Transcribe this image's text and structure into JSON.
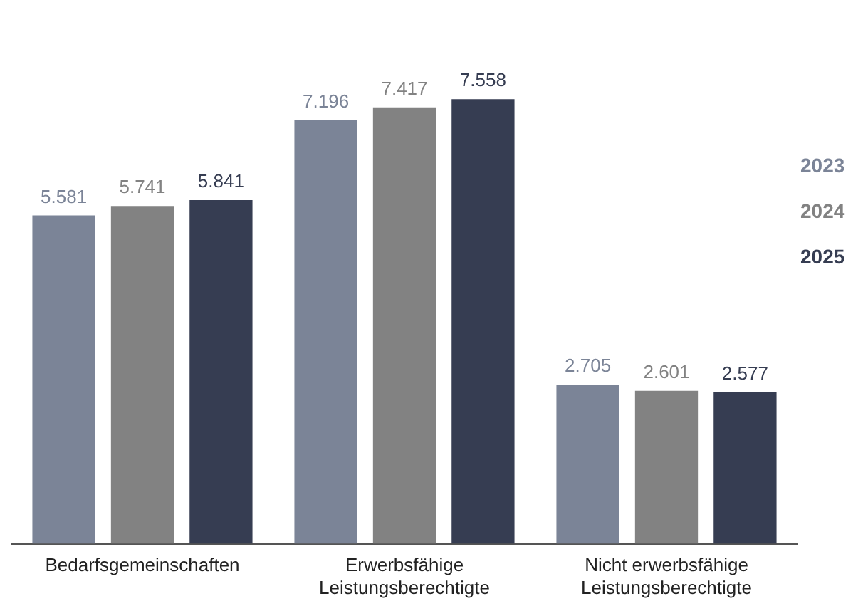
{
  "chart_data": {
    "type": "bar",
    "categories": [
      "Bedarfsgemeinschaften",
      "Erwerbsfähige Leistungsberechtigte",
      "Nicht erwerbsfähige Leistungsberechtigte"
    ],
    "series": [
      {
        "name": "2023",
        "color": "#7b8497",
        "values": [
          5581,
          7196,
          2705
        ],
        "value_labels": [
          "5.581",
          "7.196",
          "2.705"
        ]
      },
      {
        "name": "2024",
        "color": "#828282",
        "values": [
          5741,
          7417,
          2601
        ],
        "value_labels": [
          "5.741",
          "7.417",
          "2.601"
        ]
      },
      {
        "name": "2025",
        "color": "#363d52",
        "values": [
          5841,
          7558,
          2577
        ],
        "value_labels": [
          "5.841",
          "7.558",
          "2.577"
        ]
      }
    ],
    "legend": "right",
    "grid": false
  }
}
